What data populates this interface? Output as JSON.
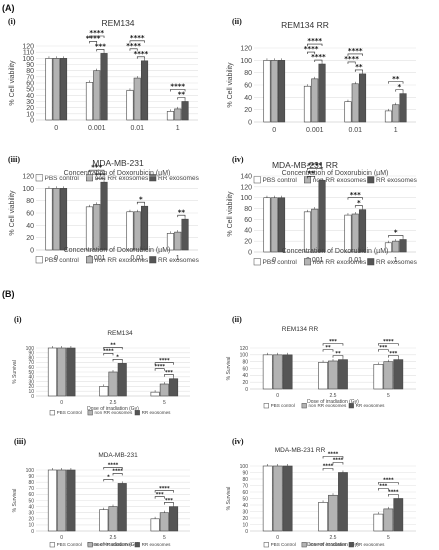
{
  "figure": {
    "section_a_label": "(A)",
    "section_b_label": "(B)",
    "colors": {
      "pbs": "#ffffff",
      "non_rr": "#b3b3b3",
      "rr": "#555555",
      "outline": "#444444",
      "grid": "#e1e1e1",
      "bracket": "#222222"
    }
  },
  "chart_data": [
    {
      "id": "a1",
      "panel_label": "(i)",
      "type": "bar",
      "title": "REM134",
      "xlabel": "Concentration of Doxorubicin (µM)",
      "ylabel": "% Cell viability",
      "categories": [
        "0",
        "0.001",
        "0.01",
        "1"
      ],
      "ylim": [
        0,
        120
      ],
      "yticks": [
        0,
        10,
        20,
        30,
        40,
        50,
        60,
        70,
        80,
        90,
        100,
        110,
        120
      ],
      "grid": true,
      "legend_position": "bottom",
      "series": [
        {
          "name": "PBS control",
          "values": [
            100,
            61,
            48,
            14
          ]
        },
        {
          "name": "non RR exosomes",
          "values": [
            100,
            80,
            68,
            18
          ]
        },
        {
          "name": "RR exosomes",
          "values": [
            100,
            108,
            96,
            30
          ]
        }
      ],
      "annotations": [
        {
          "group": 1,
          "from": 0,
          "to": 2,
          "label": "****"
        },
        {
          "group": 1,
          "from": 0,
          "to": 1,
          "label": "****"
        },
        {
          "group": 1,
          "from": 1,
          "to": 2,
          "label": "***"
        },
        {
          "group": 2,
          "from": 0,
          "to": 2,
          "label": "****"
        },
        {
          "group": 2,
          "from": 0,
          "to": 1,
          "label": "****"
        },
        {
          "group": 2,
          "from": 1,
          "to": 2,
          "label": "****"
        },
        {
          "group": 3,
          "from": 0,
          "to": 2,
          "label": "****"
        },
        {
          "group": 3,
          "from": 1,
          "to": 2,
          "label": "**"
        }
      ]
    },
    {
      "id": "a2",
      "panel_label": "(ii)",
      "type": "bar",
      "title": "REM134 RR",
      "xlabel": "Concentration of Doxorubicin (µM)",
      "ylabel": "% Cell viability",
      "categories": [
        "0",
        "0.001",
        "0.01",
        "1"
      ],
      "ylim": [
        0,
        120
      ],
      "yticks": [
        0,
        20,
        40,
        60,
        80,
        100,
        120
      ],
      "grid": true,
      "legend_position": "bottom",
      "series": [
        {
          "name": "PBS control",
          "values": [
            100,
            58,
            33,
            18
          ]
        },
        {
          "name": "non RR exosomes",
          "values": [
            100,
            70,
            62,
            28
          ]
        },
        {
          "name": "RR exosomes",
          "values": [
            100,
            94,
            78,
            46
          ]
        }
      ],
      "annotations": [
        {
          "group": 1,
          "from": 0,
          "to": 2,
          "label": "****"
        },
        {
          "group": 1,
          "from": 0,
          "to": 1,
          "label": "****"
        },
        {
          "group": 1,
          "from": 1,
          "to": 2,
          "label": "****"
        },
        {
          "group": 2,
          "from": 0,
          "to": 2,
          "label": "****"
        },
        {
          "group": 2,
          "from": 0,
          "to": 1,
          "label": "****"
        },
        {
          "group": 2,
          "from": 1,
          "to": 2,
          "label": "**"
        },
        {
          "group": 3,
          "from": 0,
          "to": 2,
          "label": "**"
        },
        {
          "group": 3,
          "from": 1,
          "to": 2,
          "label": "*"
        }
      ]
    },
    {
      "id": "a3",
      "panel_label": "(iii)",
      "type": "bar",
      "title": "MDA-MB-231",
      "xlabel": "Concentration of Doxorubicin (µM)",
      "ylabel": "% Cell viability",
      "categories": [
        "0",
        "0.001",
        "0.01",
        "1"
      ],
      "ylim": [
        0,
        120
      ],
      "yticks": [
        0,
        20,
        40,
        60,
        80,
        100,
        120
      ],
      "grid": true,
      "legend_position": "bottom",
      "series": [
        {
          "name": "PBS control",
          "values": [
            100,
            70,
            62,
            27
          ]
        },
        {
          "name": "non RR exosomes",
          "values": [
            100,
            74,
            62,
            29
          ]
        },
        {
          "name": "RR exosomes",
          "values": [
            100,
            110,
            71,
            50
          ]
        }
      ],
      "annotations": [
        {
          "group": 1,
          "from": 0,
          "to": 2,
          "label": "***"
        },
        {
          "group": 1,
          "from": 1,
          "to": 2,
          "label": "***"
        },
        {
          "group": 2,
          "from": 1,
          "to": 2,
          "label": "*"
        },
        {
          "group": 3,
          "from": 1,
          "to": 2,
          "label": "**"
        }
      ]
    },
    {
      "id": "a4",
      "panel_label": "(iv)",
      "type": "bar",
      "title": "MDA-MB-231 RR",
      "xlabel": "Concentration of Doxorubicin (µM)",
      "ylabel": "% Cell viability",
      "categories": [
        "0",
        "0.001",
        "0.01",
        "1"
      ],
      "ylim": [
        0,
        140
      ],
      "yticks": [
        0,
        20,
        40,
        60,
        80,
        100,
        120,
        140
      ],
      "grid": true,
      "legend_position": "bottom",
      "series": [
        {
          "name": "PBS control",
          "values": [
            100,
            74,
            68,
            17
          ]
        },
        {
          "name": "non RR exosomes",
          "values": [
            100,
            79,
            70,
            20
          ]
        },
        {
          "name": "RR exosomes",
          "values": [
            100,
            132,
            78,
            23
          ]
        }
      ],
      "annotations": [
        {
          "group": 1,
          "from": 0,
          "to": 2,
          "label": "****"
        },
        {
          "group": 1,
          "from": 0,
          "to": 1,
          "label": "**"
        },
        {
          "group": 2,
          "from": 0,
          "to": 2,
          "label": "***"
        },
        {
          "group": 2,
          "from": 1,
          "to": 2,
          "label": "*"
        },
        {
          "group": 3,
          "from": 0,
          "to": 2,
          "label": "*"
        }
      ]
    },
    {
      "id": "b1",
      "panel_label": "(i)",
      "type": "bar",
      "title": "REM134",
      "xlabel": "Dose of irradiation (Gy)",
      "ylabel": "% Survival",
      "categories": [
        "0",
        "2.5",
        "5"
      ],
      "ylim": [
        0,
        100
      ],
      "yticks": [
        0,
        10,
        20,
        30,
        40,
        50,
        60,
        70,
        80,
        90,
        100
      ],
      "grid": true,
      "legend_position": "bottom",
      "series": [
        {
          "name": "PBS Control",
          "values": [
            100,
            20,
            8
          ]
        },
        {
          "name": "non RR exosomes",
          "values": [
            100,
            50,
            25
          ]
        },
        {
          "name": "RR exosomes",
          "values": [
            100,
            68,
            36
          ]
        }
      ],
      "annotations": [
        {
          "group": 1,
          "from": 0,
          "to": 2,
          "label": "**"
        },
        {
          "group": 1,
          "from": 0,
          "to": 1,
          "label": "****"
        },
        {
          "group": 1,
          "from": 1,
          "to": 2,
          "label": "*"
        },
        {
          "group": 2,
          "from": 0,
          "to": 2,
          "label": "****"
        },
        {
          "group": 2,
          "from": 0,
          "to": 1,
          "label": "****"
        },
        {
          "group": 2,
          "from": 1,
          "to": 2,
          "label": "***"
        }
      ]
    },
    {
      "id": "b2",
      "panel_label": "(ii)",
      "type": "bar",
      "title": "REM134 RR",
      "xlabel": "Dose of irradiation (Gy)",
      "ylabel": "% Survival",
      "categories": [
        "0",
        "2.5",
        "5"
      ],
      "ylim": [
        0,
        120
      ],
      "yticks": [
        0,
        20,
        40,
        60,
        80,
        100,
        120
      ],
      "grid": true,
      "legend_position": "bottom",
      "series": [
        {
          "name": "PBS control",
          "values": [
            100,
            78,
            72
          ]
        },
        {
          "name": "non RR exosomes",
          "values": [
            100,
            82,
            80
          ]
        },
        {
          "name": "RR exosomes",
          "values": [
            100,
            86,
            86
          ]
        }
      ],
      "annotations": [
        {
          "group": 1,
          "from": 0,
          "to": 2,
          "label": "***"
        },
        {
          "group": 1,
          "from": 0,
          "to": 1,
          "label": "**"
        },
        {
          "group": 1,
          "from": 1,
          "to": 2,
          "label": "**"
        },
        {
          "group": 2,
          "from": 0,
          "to": 2,
          "label": "****"
        },
        {
          "group": 2,
          "from": 0,
          "to": 1,
          "label": "***"
        },
        {
          "group": 2,
          "from": 1,
          "to": 2,
          "label": "***"
        }
      ]
    },
    {
      "id": "b3",
      "panel_label": "(iii)",
      "type": "bar",
      "title": "MDA-MB-231",
      "xlabel": "Dose of irradiation (Gy)",
      "ylabel": "% Survival",
      "categories": [
        "0",
        "2.5",
        "5"
      ],
      "ylim": [
        0,
        100
      ],
      "yticks": [
        0,
        10,
        20,
        30,
        40,
        50,
        60,
        70,
        80,
        90,
        100
      ],
      "grid": true,
      "legend_position": "bottom",
      "series": [
        {
          "name": "PBS Control",
          "values": [
            100,
            35,
            20
          ]
        },
        {
          "name": "non RR exosomes",
          "values": [
            100,
            40,
            30
          ]
        },
        {
          "name": "RR exosomes",
          "values": [
            100,
            78,
            40
          ]
        }
      ],
      "annotations": [
        {
          "group": 1,
          "from": 0,
          "to": 2,
          "label": "****"
        },
        {
          "group": 1,
          "from": 1,
          "to": 2,
          "label": "****"
        },
        {
          "group": 1,
          "from": 0,
          "to": 1,
          "label": "*"
        },
        {
          "group": 2,
          "from": 0,
          "to": 2,
          "label": "****"
        },
        {
          "group": 2,
          "from": 0,
          "to": 1,
          "label": "***"
        },
        {
          "group": 2,
          "from": 1,
          "to": 2,
          "label": "***"
        }
      ]
    },
    {
      "id": "b4",
      "panel_label": "(iv)",
      "type": "bar",
      "title": "MDA-MB-231 RR",
      "xlabel": "Dose of irradiation (Gy)",
      "ylabel": "% Survival",
      "categories": [
        "0",
        "2.5",
        "5"
      ],
      "ylim": [
        0,
        100
      ],
      "yticks": [
        0,
        10,
        20,
        30,
        40,
        50,
        60,
        70,
        80,
        90,
        100
      ],
      "grid": true,
      "legend_position": "bottom",
      "series": [
        {
          "name": "PBS Control",
          "values": [
            100,
            44,
            26
          ]
        },
        {
          "name": "non RR exosomes",
          "values": [
            100,
            55,
            34
          ]
        },
        {
          "name": "RR exosomes",
          "values": [
            100,
            90,
            50
          ]
        }
      ],
      "annotations": [
        {
          "group": 1,
          "from": 0,
          "to": 2,
          "label": "****"
        },
        {
          "group": 1,
          "from": 1,
          "to": 2,
          "label": "****"
        },
        {
          "group": 1,
          "from": 0,
          "to": 1,
          "label": "****"
        },
        {
          "group": 2,
          "from": 0,
          "to": 2,
          "label": "****"
        },
        {
          "group": 2,
          "from": 0,
          "to": 1,
          "label": "***"
        },
        {
          "group": 2,
          "from": 1,
          "to": 2,
          "label": "****"
        }
      ]
    }
  ]
}
